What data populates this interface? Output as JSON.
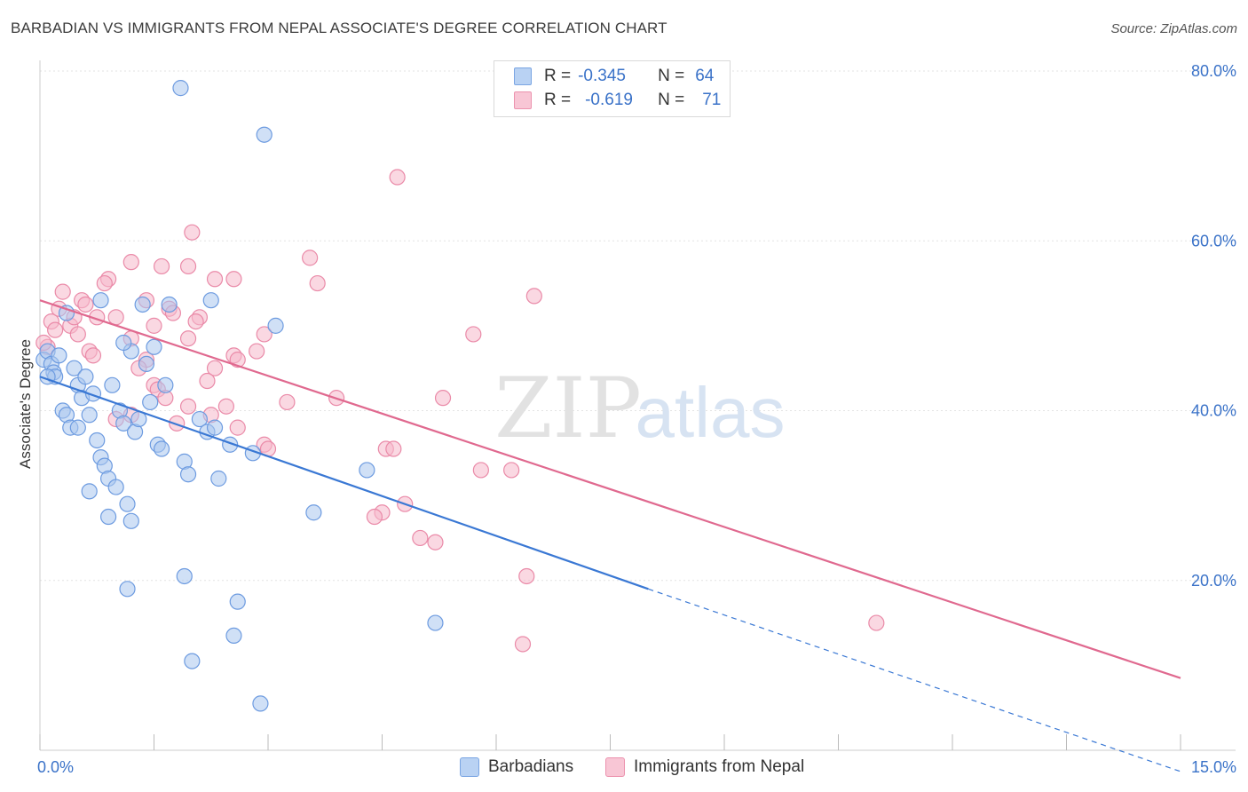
{
  "title": "BARBADIAN VS IMMIGRANTS FROM NEPAL ASSOCIATE'S DEGREE CORRELATION CHART",
  "source": "Source: ZipAtlas.com",
  "watermark": {
    "part1": "ZIP",
    "part2": "atlas"
  },
  "legend": {
    "rows": [
      {
        "r_label": "R =",
        "r_value": "-0.345",
        "n_label": "N =",
        "n_value": "64"
      },
      {
        "r_label": "R =",
        "r_value": "-0.619",
        "n_label": "N =",
        "n_value": "71"
      }
    ]
  },
  "bottom_legend": [
    "Barbadians",
    "Immigrants from Nepal"
  ],
  "colors": {
    "blue_fill": "#a9c6ee",
    "blue_stroke": "#6d9be0",
    "blue_line": "#3a78d4",
    "pink_fill": "#f6b8cb",
    "pink_stroke": "#ea8aa8",
    "pink_line": "#e0698f",
    "axis_value": "#3a72c8",
    "grid": "#e3e3e3"
  },
  "chart_data": {
    "type": "scatter",
    "title": "BARBADIAN VS IMMIGRANTS FROM NEPAL ASSOCIATE'S DEGREE CORRELATION CHART",
    "xlabel": "",
    "ylabel": "Associate's Degree",
    "xlim": [
      0,
      15
    ],
    "ylim": [
      0,
      80
    ],
    "x_tick_labels": [
      "0.0%",
      "15.0%"
    ],
    "y_ticks": [
      20,
      40,
      60,
      80
    ],
    "y_tick_labels": [
      "20.0%",
      "40.0%",
      "60.0%",
      "80.0%"
    ],
    "grid": true,
    "legend_position": "top-center",
    "series": [
      {
        "name": "Barbadians",
        "r": -0.345,
        "n": 64,
        "trend": {
          "x_start": 0.0,
          "y_start": 44.0,
          "x_solid_end": 8.0,
          "y_solid_end": 19.0,
          "x_end": 15.0,
          "y_end": -2.5
        },
        "points": [
          [
            1.85,
            78
          ],
          [
            2.0,
            10.5
          ],
          [
            2.95,
            72.5
          ],
          [
            0.05,
            46
          ],
          [
            0.1,
            47
          ],
          [
            0.15,
            45.5
          ],
          [
            0.18,
            44.5
          ],
          [
            0.2,
            44
          ],
          [
            0.25,
            46.5
          ],
          [
            0.3,
            40
          ],
          [
            0.35,
            39.5
          ],
          [
            0.4,
            38
          ],
          [
            0.45,
            45
          ],
          [
            0.5,
            43
          ],
          [
            0.55,
            41.5
          ],
          [
            0.6,
            44
          ],
          [
            0.65,
            39.5
          ],
          [
            0.7,
            42
          ],
          [
            0.75,
            36.5
          ],
          [
            0.8,
            34.5
          ],
          [
            0.85,
            33.5
          ],
          [
            0.9,
            32
          ],
          [
            0.95,
            43
          ],
          [
            1.0,
            31
          ],
          [
            1.05,
            40
          ],
          [
            1.1,
            38.5
          ],
          [
            1.15,
            29
          ],
          [
            1.2,
            27
          ],
          [
            1.25,
            37.5
          ],
          [
            1.3,
            39
          ],
          [
            1.35,
            52.5
          ],
          [
            1.4,
            45.5
          ],
          [
            1.45,
            41
          ],
          [
            1.5,
            47.5
          ],
          [
            1.55,
            36
          ],
          [
            1.6,
            35.5
          ],
          [
            1.65,
            43
          ],
          [
            1.7,
            52.5
          ],
          [
            1.9,
            34
          ],
          [
            1.95,
            32.5
          ],
          [
            2.1,
            39
          ],
          [
            2.2,
            37.5
          ],
          [
            2.25,
            53
          ],
          [
            2.3,
            38
          ],
          [
            2.35,
            32
          ],
          [
            2.5,
            36
          ],
          [
            2.8,
            35
          ],
          [
            3.1,
            50
          ],
          [
            3.6,
            28
          ],
          [
            4.3,
            33
          ],
          [
            5.2,
            15
          ],
          [
            1.15,
            19
          ],
          [
            1.9,
            20.5
          ],
          [
            2.6,
            17.5
          ],
          [
            2.55,
            13.5
          ],
          [
            2.9,
            5.5
          ],
          [
            0.1,
            44
          ],
          [
            0.35,
            51.5
          ],
          [
            0.8,
            53
          ],
          [
            1.2,
            47
          ],
          [
            0.5,
            38
          ],
          [
            0.65,
            30.5
          ],
          [
            0.9,
            27.5
          ],
          [
            1.1,
            48
          ]
        ]
      },
      {
        "name": "Immigrants from Nepal",
        "r": -0.619,
        "n": 71,
        "trend": {
          "x_start": 0.0,
          "y_start": 53.0,
          "x_end": 15.0,
          "y_end": 8.5
        },
        "points": [
          [
            4.7,
            67.5
          ],
          [
            2.0,
            61
          ],
          [
            3.55,
            58
          ],
          [
            1.2,
            57.5
          ],
          [
            1.6,
            57
          ],
          [
            1.95,
            57
          ],
          [
            0.9,
            55.5
          ],
          [
            0.85,
            55
          ],
          [
            2.3,
            55.5
          ],
          [
            2.55,
            55.5
          ],
          [
            3.65,
            55
          ],
          [
            6.5,
            53.5
          ],
          [
            0.3,
            54
          ],
          [
            0.55,
            53
          ],
          [
            0.6,
            52.5
          ],
          [
            0.75,
            51
          ],
          [
            1.4,
            53
          ],
          [
            1.7,
            52
          ],
          [
            1.75,
            51.5
          ],
          [
            2.1,
            51
          ],
          [
            0.15,
            50.5
          ],
          [
            0.2,
            49.5
          ],
          [
            0.4,
            50
          ],
          [
            0.5,
            49
          ],
          [
            1.0,
            51
          ],
          [
            1.5,
            50
          ],
          [
            2.05,
            50.5
          ],
          [
            2.95,
            49
          ],
          [
            1.2,
            48.5
          ],
          [
            1.95,
            48.5
          ],
          [
            5.7,
            49
          ],
          [
            0.1,
            47.5
          ],
          [
            0.65,
            47
          ],
          [
            0.7,
            46.5
          ],
          [
            1.4,
            46
          ],
          [
            1.3,
            45
          ],
          [
            2.55,
            46.5
          ],
          [
            2.6,
            46
          ],
          [
            2.85,
            47
          ],
          [
            2.3,
            45
          ],
          [
            1.5,
            43
          ],
          [
            1.55,
            42.5
          ],
          [
            2.2,
            43.5
          ],
          [
            3.25,
            41
          ],
          [
            3.9,
            41.5
          ],
          [
            5.3,
            41.5
          ],
          [
            1.65,
            41.5
          ],
          [
            1.95,
            40.5
          ],
          [
            2.45,
            40.5
          ],
          [
            2.25,
            39.5
          ],
          [
            2.6,
            38
          ],
          [
            2.95,
            36
          ],
          [
            3.0,
            35.5
          ],
          [
            4.55,
            35.5
          ],
          [
            4.65,
            35.5
          ],
          [
            1.0,
            39
          ],
          [
            1.2,
            39.5
          ],
          [
            1.8,
            38.5
          ],
          [
            5.8,
            33
          ],
          [
            6.2,
            33
          ],
          [
            4.8,
            29
          ],
          [
            4.5,
            28
          ],
          [
            4.4,
            27.5
          ],
          [
            5.0,
            25
          ],
          [
            5.2,
            24.5
          ],
          [
            6.4,
            20.5
          ],
          [
            6.35,
            12.5
          ],
          [
            11.0,
            15
          ],
          [
            0.05,
            48
          ],
          [
            0.25,
            52
          ],
          [
            0.45,
            51
          ]
        ]
      }
    ]
  }
}
